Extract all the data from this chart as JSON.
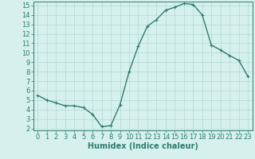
{
  "x": [
    0,
    1,
    2,
    3,
    4,
    5,
    6,
    7,
    8,
    9,
    10,
    11,
    12,
    13,
    14,
    15,
    16,
    17,
    18,
    19,
    20,
    21,
    22,
    23
  ],
  "y": [
    5.5,
    5.0,
    4.7,
    4.4,
    4.4,
    4.2,
    3.5,
    2.2,
    2.3,
    4.5,
    8.0,
    10.7,
    12.8,
    13.5,
    14.5,
    14.8,
    15.2,
    15.1,
    14.0,
    10.8,
    10.3,
    9.7,
    9.2,
    7.5
  ],
  "xlabel": "Humidex (Indice chaleur)",
  "ylabel": "",
  "title": "",
  "line_color": "#2e7d6e",
  "marker_color": "#2e7d6e",
  "bg_color": "#d6f0ee",
  "grid_color": "#b0d8d4",
  "axis_color": "#2e7d6e",
  "tick_color": "#2e7d6e",
  "xlabel_color": "#2e7d6e",
  "xlim": [
    -0.5,
    23.5
  ],
  "ylim": [
    1.8,
    15.4
  ],
  "yticks": [
    2,
    3,
    4,
    5,
    6,
    7,
    8,
    9,
    10,
    11,
    12,
    13,
    14,
    15
  ],
  "xticks": [
    0,
    1,
    2,
    3,
    4,
    5,
    6,
    7,
    8,
    9,
    10,
    11,
    12,
    13,
    14,
    15,
    16,
    17,
    18,
    19,
    20,
    21,
    22,
    23
  ],
  "font_size": 6,
  "xlabel_font_size": 7,
  "marker_size": 2.5,
  "line_width": 1.0
}
